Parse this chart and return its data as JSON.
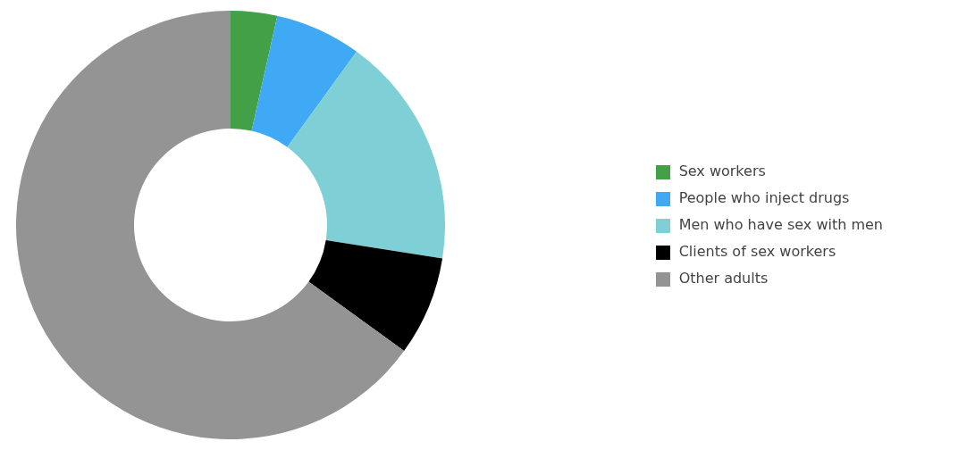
{
  "chart_data": {
    "type": "donut",
    "categories": [
      "Sex workers",
      "People who inject drugs",
      "Men who have sex with men",
      "Clients of sex workers",
      "Other adults"
    ],
    "values": [
      3.5,
      6.5,
      17.5,
      7.5,
      65
    ],
    "colors": [
      "#43a047",
      "#3fa9f5",
      "#7fd0d6",
      "#000000",
      "#949494"
    ],
    "legend": "right"
  }
}
